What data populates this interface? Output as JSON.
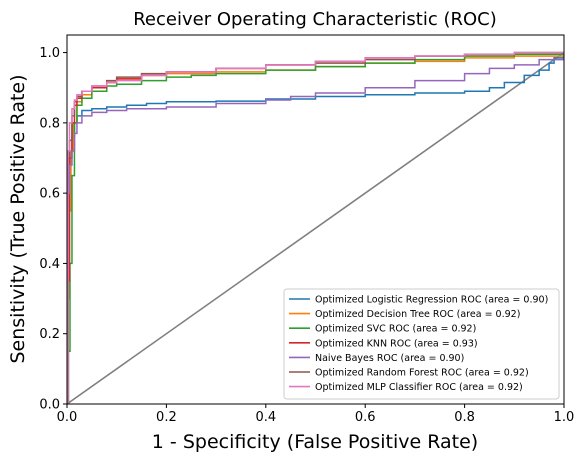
{
  "chart_data": {
    "type": "line",
    "title": "Receiver Operating Characteristic (ROC)",
    "xlabel": "1 - Specificity (False Positive Rate)",
    "ylabel": "Sensitivity (True Positive Rate)",
    "xlim": [
      0.0,
      1.0
    ],
    "ylim": [
      0.0,
      1.05
    ],
    "x_ticks": [
      "0.0",
      "0.2",
      "0.4",
      "0.6",
      "0.8",
      "1.0"
    ],
    "y_ticks": [
      "0.0",
      "0.2",
      "0.4",
      "0.6",
      "0.8",
      "1.0"
    ],
    "grid": false,
    "legend_position": "lower-right",
    "diagonal": {
      "x": [
        0,
        1
      ],
      "y": [
        0,
        1
      ],
      "color": "#808080"
    },
    "series": [
      {
        "name": "Optimized Logistic Regression ROC (area = 0.90)",
        "color": "#1f77b4",
        "x": [
          0,
          0.002,
          0.004,
          0.007,
          0.01,
          0.015,
          0.02,
          0.03,
          0.05,
          0.08,
          0.12,
          0.16,
          0.2,
          0.3,
          0.4,
          0.5,
          0.6,
          0.7,
          0.8,
          0.85,
          0.88,
          0.92,
          0.95,
          0.97,
          0.98,
          1.0
        ],
        "y": [
          0,
          0.62,
          0.68,
          0.72,
          0.76,
          0.8,
          0.82,
          0.835,
          0.84,
          0.845,
          0.85,
          0.855,
          0.86,
          0.862,
          0.868,
          0.875,
          0.88,
          0.885,
          0.89,
          0.9,
          0.915,
          0.935,
          0.95,
          0.97,
          0.985,
          1.0
        ]
      },
      {
        "name": "Optimized Decision Tree ROC (area = 0.92)",
        "color": "#ff7f0e",
        "x": [
          0,
          0.002,
          0.005,
          0.008,
          0.012,
          0.02,
          0.03,
          0.05,
          0.08,
          0.1,
          0.15,
          0.2,
          0.3,
          0.4,
          0.5,
          0.6,
          0.7,
          0.8,
          0.9,
          1.0
        ],
        "y": [
          0,
          0.3,
          0.55,
          0.72,
          0.8,
          0.86,
          0.88,
          0.9,
          0.915,
          0.925,
          0.935,
          0.94,
          0.945,
          0.95,
          0.96,
          0.97,
          0.975,
          0.985,
          0.99,
          1.0
        ]
      },
      {
        "name": "Optimized SVC ROC (area = 0.92)",
        "color": "#2ca02c",
        "x": [
          0,
          0.003,
          0.006,
          0.01,
          0.015,
          0.02,
          0.03,
          0.05,
          0.08,
          0.1,
          0.15,
          0.2,
          0.25,
          0.3,
          0.4,
          0.5,
          0.6,
          0.7,
          0.8,
          0.9,
          1.0
        ],
        "y": [
          0,
          0.15,
          0.4,
          0.65,
          0.8,
          0.85,
          0.87,
          0.89,
          0.905,
          0.91,
          0.92,
          0.93,
          0.935,
          0.94,
          0.95,
          0.96,
          0.97,
          0.98,
          0.99,
          0.995,
          1.0
        ]
      },
      {
        "name": "Optimized KNN ROC (area = 0.93)",
        "color": "#d62728",
        "x": [
          0,
          0.002,
          0.005,
          0.01,
          0.015,
          0.02,
          0.03,
          0.05,
          0.08,
          0.1,
          0.15,
          0.2,
          0.3,
          0.4,
          0.5,
          0.6,
          0.7,
          0.8,
          0.9,
          1.0
        ],
        "y": [
          0,
          0.35,
          0.7,
          0.8,
          0.85,
          0.87,
          0.89,
          0.9,
          0.915,
          0.925,
          0.935,
          0.945,
          0.955,
          0.965,
          0.975,
          0.985,
          0.99,
          0.995,
          1.0,
          1.0
        ]
      },
      {
        "name": "Naive Bayes ROC (area = 0.90)",
        "color": "#9467bd",
        "x": [
          0,
          0.002,
          0.005,
          0.01,
          0.015,
          0.02,
          0.03,
          0.05,
          0.08,
          0.12,
          0.2,
          0.3,
          0.4,
          0.45,
          0.5,
          0.6,
          0.7,
          0.8,
          0.85,
          0.9,
          0.95,
          1.0
        ],
        "y": [
          0,
          0.6,
          0.68,
          0.72,
          0.77,
          0.8,
          0.82,
          0.83,
          0.835,
          0.84,
          0.845,
          0.855,
          0.865,
          0.875,
          0.885,
          0.9,
          0.92,
          0.94,
          0.955,
          0.965,
          0.98,
          1.0
        ]
      },
      {
        "name": "Optimized Random Forest ROC (area = 0.92)",
        "color": "#8c564b",
        "x": [
          0,
          0.002,
          0.005,
          0.01,
          0.015,
          0.02,
          0.03,
          0.05,
          0.08,
          0.1,
          0.15,
          0.2,
          0.3,
          0.4,
          0.5,
          0.6,
          0.7,
          0.8,
          0.9,
          1.0
        ],
        "y": [
          0,
          0.7,
          0.75,
          0.82,
          0.86,
          0.875,
          0.89,
          0.905,
          0.92,
          0.93,
          0.94,
          0.945,
          0.955,
          0.965,
          0.97,
          0.98,
          0.99,
          0.995,
          1.0,
          1.0
        ]
      },
      {
        "name": "Optimized MLP Classifier ROC (area = 0.92)",
        "color": "#e377c2",
        "x": [
          0,
          0.002,
          0.005,
          0.01,
          0.015,
          0.02,
          0.03,
          0.05,
          0.08,
          0.1,
          0.15,
          0.2,
          0.3,
          0.4,
          0.5,
          0.6,
          0.7,
          0.8,
          0.9,
          1.0
        ],
        "y": [
          0,
          0.72,
          0.8,
          0.84,
          0.865,
          0.88,
          0.89,
          0.905,
          0.915,
          0.92,
          0.935,
          0.945,
          0.955,
          0.965,
          0.975,
          0.985,
          0.99,
          0.995,
          1.0,
          1.0
        ]
      }
    ]
  }
}
